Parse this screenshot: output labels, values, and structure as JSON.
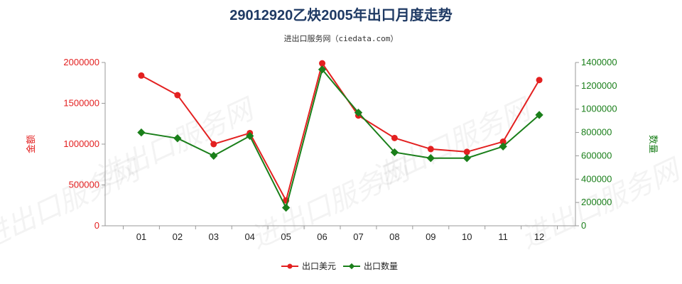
{
  "chart_data": {
    "type": "line",
    "title": "29012920乙炔2005年出口月度走势",
    "subtitle": "进出口服务网（ciedata.com）",
    "categories": [
      "01",
      "02",
      "03",
      "04",
      "05",
      "06",
      "07",
      "08",
      "09",
      "10",
      "11",
      "12"
    ],
    "series": [
      {
        "name": "出口美元",
        "axis": "left",
        "color": "#e32020",
        "values": [
          1840000,
          1600000,
          1000000,
          1135000,
          310000,
          1990000,
          1350000,
          1075000,
          940000,
          905000,
          1030000,
          1785000
        ]
      },
      {
        "name": "出口数量",
        "axis": "right",
        "color": "#1a7f1a",
        "values": [
          800000,
          750000,
          600000,
          770000,
          155000,
          1340000,
          970000,
          630000,
          580000,
          580000,
          680000,
          950000
        ]
      }
    ],
    "y_left": {
      "label": "金额",
      "ylim": [
        0,
        2000000
      ],
      "ticks": [
        "0",
        "500000",
        "1000000",
        "1500000",
        "2000000"
      ],
      "color": "#e32020"
    },
    "y_right": {
      "label": "数量",
      "ylim": [
        0,
        1400000
      ],
      "ticks": [
        "0",
        "200000",
        "400000",
        "600000",
        "800000",
        "1000000",
        "1200000",
        "1400000"
      ],
      "color": "#1a7f1a"
    },
    "legend": {
      "placement": "bottom-center",
      "items": [
        "出口美元",
        "出口数量"
      ]
    },
    "grid": false,
    "watermark": "进出口服务网"
  }
}
